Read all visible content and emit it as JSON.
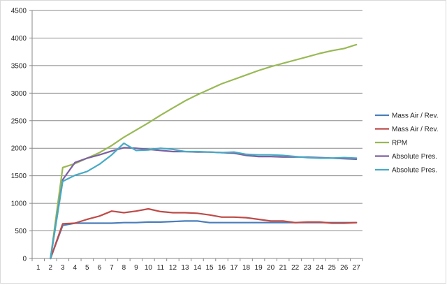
{
  "chart_data": {
    "type": "line",
    "categories": [
      "1",
      "2",
      "3",
      "4",
      "5",
      "6",
      "7",
      "8",
      "9",
      "10",
      "11",
      "12",
      "13",
      "14",
      "15",
      "16",
      "17",
      "18",
      "19",
      "20",
      "21",
      "22",
      "23",
      "24",
      "25",
      "26",
      "27"
    ],
    "ylim": [
      0,
      4500
    ],
    "yticks": [
      0,
      500,
      1000,
      1500,
      2000,
      2500,
      3000,
      3500,
      4000,
      4500
    ],
    "grid": true,
    "legend_position": "right",
    "series": [
      {
        "name": "Mass Air / Rev.",
        "color": "#4a7ebb",
        "values": [
          null,
          0,
          600,
          640,
          640,
          640,
          640,
          650,
          650,
          660,
          660,
          670,
          680,
          680,
          650,
          650,
          650,
          650,
          650,
          650,
          650,
          650,
          650,
          650,
          650,
          650,
          650
        ]
      },
      {
        "name": "Mass Air / Rev.",
        "color": "#be4b48",
        "values": [
          null,
          0,
          630,
          640,
          710,
          770,
          860,
          830,
          860,
          900,
          850,
          830,
          830,
          820,
          790,
          750,
          750,
          740,
          710,
          680,
          680,
          650,
          660,
          660,
          640,
          640,
          650
        ]
      },
      {
        "name": "RPM",
        "color": "#98b954",
        "values": [
          null,
          0,
          1650,
          1720,
          1820,
          1920,
          2050,
          2200,
          2330,
          2460,
          2600,
          2730,
          2860,
          2970,
          3070,
          3170,
          3250,
          3330,
          3410,
          3480,
          3540,
          3600,
          3660,
          3720,
          3770,
          3810,
          3880
        ]
      },
      {
        "name": "Absolute Pres.",
        "color": "#7d60a0",
        "values": [
          null,
          0,
          1430,
          1740,
          1820,
          1880,
          1950,
          2010,
          2000,
          1980,
          1960,
          1940,
          1940,
          1930,
          1930,
          1920,
          1910,
          1870,
          1850,
          1850,
          1840,
          1840,
          1840,
          1830,
          1820,
          1810,
          1800
        ]
      },
      {
        "name": "Absolute Pres.",
        "color": "#46aac5",
        "values": [
          null,
          0,
          1400,
          1510,
          1580,
          1710,
          1880,
          2090,
          1960,
          1970,
          2000,
          1980,
          1940,
          1940,
          1930,
          1920,
          1930,
          1890,
          1880,
          1880,
          1870,
          1850,
          1830,
          1820,
          1820,
          1830,
          1820
        ]
      }
    ]
  }
}
